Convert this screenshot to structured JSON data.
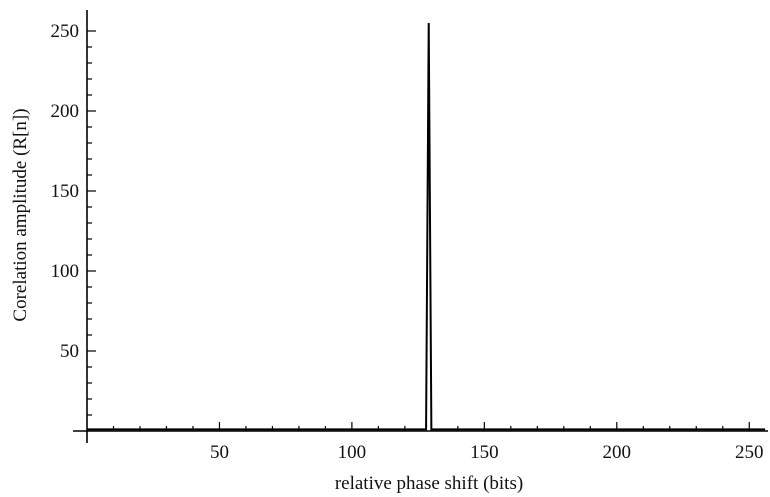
{
  "chart_data": {
    "type": "line",
    "title": "",
    "xlabel": "relative phase shift (bits)",
    "ylabel": "Corelation amplitude (R[n])",
    "xlim": [
      0,
      256
    ],
    "ylim": [
      0,
      255
    ],
    "x_ticks": [
      50,
      100,
      150,
      200,
      250
    ],
    "y_ticks": [
      50,
      100,
      150,
      200,
      250
    ],
    "x_tick_labels": [
      "50",
      "100",
      "150",
      "200",
      "250"
    ],
    "y_tick_labels": [
      "50",
      "100",
      "150",
      "200",
      "250"
    ],
    "x_minor_step": 10,
    "y_minor_step": 10,
    "grid": false,
    "legend": "none",
    "line_color": "#000000",
    "series": [
      {
        "x": [
          0,
          127,
          128,
          129,
          130,
          131,
          256
        ],
        "values": [
          1,
          1,
          1,
          255,
          1,
          1,
          1
        ]
      }
    ]
  }
}
